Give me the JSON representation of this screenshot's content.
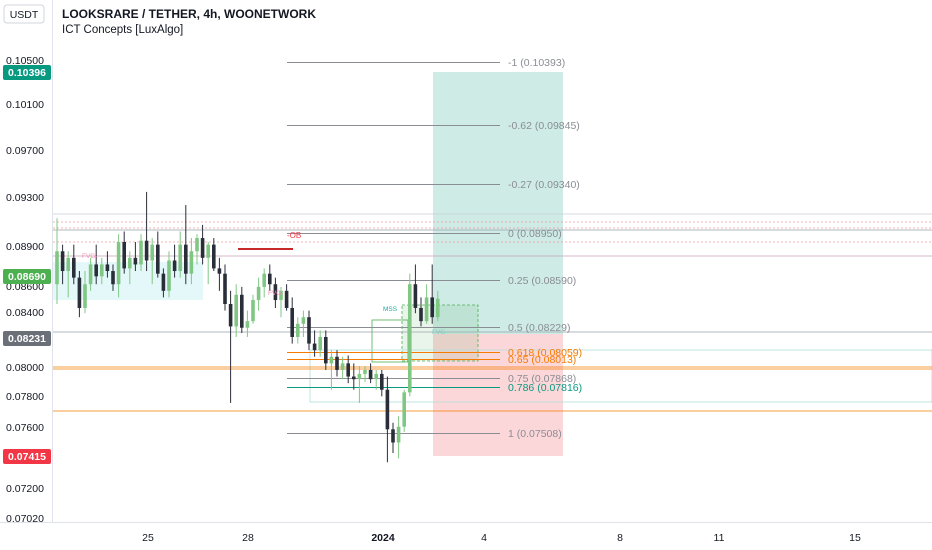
{
  "header": {
    "unit_button": "USDT",
    "symbol_title": "LOOKSRARE / TETHER, 4h, WOONETWORK",
    "indicator": "ICT Concepts [LuxAlgo]"
  },
  "price_axis": {
    "min": 0.0702,
    "max": 0.105,
    "ticks": [
      "0.10500",
      "0.10100",
      "0.09700",
      "0.09300",
      "0.08900",
      "0.08600",
      "0.08400",
      "0.08000",
      "0.07800",
      "0.07600",
      "0.07200",
      "0.07020"
    ]
  },
  "price_tags": [
    {
      "label": "0.10396",
      "value": 0.10396,
      "color": "#089981"
    },
    {
      "label": "0.08690",
      "value": 0.0869,
      "color": "#4caf50"
    },
    {
      "label": "0.08231",
      "value": 0.08231,
      "color": "#6b6f78"
    },
    {
      "label": "0.07415",
      "value": 0.07415,
      "color": "#f23645"
    }
  ],
  "time_axis": {
    "labels": [
      {
        "label": "25",
        "bold": false
      },
      {
        "label": "28",
        "bold": false
      },
      {
        "label": "2024",
        "bold": true
      },
      {
        "label": "4",
        "bold": false
      },
      {
        "label": "8",
        "bold": false
      },
      {
        "label": "11",
        "bold": false
      },
      {
        "label": "15",
        "bold": false
      }
    ]
  },
  "fib_levels": [
    {
      "label": "-1 (0.10393)",
      "value": 0.10393,
      "color": "#8a8d94"
    },
    {
      "label": "-0.62 (0.09845)",
      "value": 0.09845,
      "color": "#8a8d94"
    },
    {
      "label": "-0.27 (0.09340)",
      "value": 0.0934,
      "color": "#8a8d94"
    },
    {
      "label": "0 (0.08950)",
      "value": 0.0895,
      "color": "#8a8d94"
    },
    {
      "label": "0.25 (0.08590)",
      "value": 0.0859,
      "color": "#8a8d94"
    },
    {
      "label": "0.5 (0.08229)",
      "value": 0.08229,
      "color": "#8a8d94"
    },
    {
      "label": "0.618 (0.08059)",
      "value": 0.08059,
      "color": "#f57c00"
    },
    {
      "label": "0.65 (0.08013)",
      "value": 0.08013,
      "color": "#f57c00"
    },
    {
      "label": "0.75 (0.07868)",
      "value": 0.07868,
      "color": "#8a8d94"
    },
    {
      "label": "0.786 (0.07816)",
      "value": 0.07816,
      "color": "#089981"
    },
    {
      "label": "1 (0.07508)",
      "value": 0.07508,
      "color": "#8a8d94"
    }
  ],
  "annotations": {
    "ob_label": "-OB",
    "fvg_labels": [
      "FVG-",
      "FVG-",
      "FVG-"
    ],
    "mss_label": "MSS"
  },
  "chart_data": {
    "type": "candlestick",
    "symbol": "LOOKSRARE / TETHER",
    "timeframe": "4h",
    "exchange": "WOONETWORK",
    "y_range": [
      0.0702,
      0.105
    ],
    "candles": [
      {
        "o": 0.088,
        "h": 0.093,
        "l": 0.0865,
        "c": 0.0905
      },
      {
        "o": 0.0905,
        "h": 0.091,
        "l": 0.088,
        "c": 0.089
      },
      {
        "o": 0.089,
        "h": 0.0905,
        "l": 0.087,
        "c": 0.09
      },
      {
        "o": 0.09,
        "h": 0.091,
        "l": 0.088,
        "c": 0.0885
      },
      {
        "o": 0.0885,
        "h": 0.089,
        "l": 0.0855,
        "c": 0.0862
      },
      {
        "o": 0.0862,
        "h": 0.089,
        "l": 0.0858,
        "c": 0.088
      },
      {
        "o": 0.088,
        "h": 0.09,
        "l": 0.0875,
        "c": 0.0895
      },
      {
        "o": 0.0895,
        "h": 0.091,
        "l": 0.088,
        "c": 0.0886
      },
      {
        "o": 0.0886,
        "h": 0.09,
        "l": 0.088,
        "c": 0.0895
      },
      {
        "o": 0.0895,
        "h": 0.0905,
        "l": 0.0885,
        "c": 0.089
      },
      {
        "o": 0.089,
        "h": 0.0895,
        "l": 0.0875,
        "c": 0.088
      },
      {
        "o": 0.088,
        "h": 0.0918,
        "l": 0.087,
        "c": 0.0912
      },
      {
        "o": 0.0912,
        "h": 0.092,
        "l": 0.0888,
        "c": 0.0892
      },
      {
        "o": 0.0892,
        "h": 0.0905,
        "l": 0.088,
        "c": 0.09
      },
      {
        "o": 0.09,
        "h": 0.0912,
        "l": 0.089,
        "c": 0.0895
      },
      {
        "o": 0.0895,
        "h": 0.0918,
        "l": 0.089,
        "c": 0.0913
      },
      {
        "o": 0.0913,
        "h": 0.095,
        "l": 0.089,
        "c": 0.0898
      },
      {
        "o": 0.0898,
        "h": 0.0915,
        "l": 0.088,
        "c": 0.091
      },
      {
        "o": 0.091,
        "h": 0.092,
        "l": 0.0885,
        "c": 0.0888
      },
      {
        "o": 0.0888,
        "h": 0.0892,
        "l": 0.087,
        "c": 0.0875
      },
      {
        "o": 0.0875,
        "h": 0.0905,
        "l": 0.087,
        "c": 0.0898
      },
      {
        "o": 0.0898,
        "h": 0.091,
        "l": 0.0885,
        "c": 0.089
      },
      {
        "o": 0.089,
        "h": 0.092,
        "l": 0.0885,
        "c": 0.091
      },
      {
        "o": 0.091,
        "h": 0.094,
        "l": 0.088,
        "c": 0.0888
      },
      {
        "o": 0.0888,
        "h": 0.0915,
        "l": 0.088,
        "c": 0.0905
      },
      {
        "o": 0.0905,
        "h": 0.0918,
        "l": 0.0895,
        "c": 0.0915
      },
      {
        "o": 0.0915,
        "h": 0.0925,
        "l": 0.0895,
        "c": 0.09
      },
      {
        "o": 0.09,
        "h": 0.0912,
        "l": 0.088,
        "c": 0.091
      },
      {
        "o": 0.091,
        "h": 0.0915,
        "l": 0.089,
        "c": 0.0892
      },
      {
        "o": 0.0892,
        "h": 0.09,
        "l": 0.0875,
        "c": 0.0888
      },
      {
        "o": 0.0888,
        "h": 0.0895,
        "l": 0.086,
        "c": 0.0865
      },
      {
        "o": 0.0865,
        "h": 0.0875,
        "l": 0.079,
        "c": 0.0848
      },
      {
        "o": 0.0848,
        "h": 0.088,
        "l": 0.084,
        "c": 0.0872
      },
      {
        "o": 0.0872,
        "h": 0.0878,
        "l": 0.0843,
        "c": 0.0847
      },
      {
        "o": 0.0847,
        "h": 0.086,
        "l": 0.084,
        "c": 0.0852
      },
      {
        "o": 0.0852,
        "h": 0.0872,
        "l": 0.085,
        "c": 0.0868
      },
      {
        "o": 0.0868,
        "h": 0.0885,
        "l": 0.086,
        "c": 0.0878
      },
      {
        "o": 0.0878,
        "h": 0.0892,
        "l": 0.087,
        "c": 0.0888
      },
      {
        "o": 0.0888,
        "h": 0.0895,
        "l": 0.0875,
        "c": 0.088
      },
      {
        "o": 0.088,
        "h": 0.0885,
        "l": 0.0862,
        "c": 0.0868
      },
      {
        "o": 0.0868,
        "h": 0.0878,
        "l": 0.0855,
        "c": 0.0875
      },
      {
        "o": 0.0875,
        "h": 0.088,
        "l": 0.086,
        "c": 0.0862
      },
      {
        "o": 0.0862,
        "h": 0.087,
        "l": 0.0835,
        "c": 0.084
      },
      {
        "o": 0.084,
        "h": 0.0855,
        "l": 0.0835,
        "c": 0.085
      },
      {
        "o": 0.085,
        "h": 0.086,
        "l": 0.084,
        "c": 0.0855
      },
      {
        "o": 0.0855,
        "h": 0.086,
        "l": 0.083,
        "c": 0.0835
      },
      {
        "o": 0.0835,
        "h": 0.0845,
        "l": 0.0825,
        "c": 0.083
      },
      {
        "o": 0.083,
        "h": 0.0845,
        "l": 0.0825,
        "c": 0.084
      },
      {
        "o": 0.084,
        "h": 0.0845,
        "l": 0.0815,
        "c": 0.082
      },
      {
        "o": 0.082,
        "h": 0.083,
        "l": 0.08,
        "c": 0.0825
      },
      {
        "o": 0.0825,
        "h": 0.083,
        "l": 0.081,
        "c": 0.0815
      },
      {
        "o": 0.0815,
        "h": 0.0825,
        "l": 0.0808,
        "c": 0.082
      },
      {
        "o": 0.082,
        "h": 0.0826,
        "l": 0.0805,
        "c": 0.081
      },
      {
        "o": 0.081,
        "h": 0.082,
        "l": 0.08,
        "c": 0.0808
      },
      {
        "o": 0.0808,
        "h": 0.0818,
        "l": 0.079,
        "c": 0.0812
      },
      {
        "o": 0.0812,
        "h": 0.0818,
        "l": 0.0806,
        "c": 0.0815
      },
      {
        "o": 0.0815,
        "h": 0.082,
        "l": 0.0805,
        "c": 0.0808
      },
      {
        "o": 0.0808,
        "h": 0.0815,
        "l": 0.08,
        "c": 0.0812
      },
      {
        "o": 0.0812,
        "h": 0.0815,
        "l": 0.0795,
        "c": 0.08
      },
      {
        "o": 0.08,
        "h": 0.081,
        "l": 0.0745,
        "c": 0.077
      },
      {
        "o": 0.077,
        "h": 0.0775,
        "l": 0.0752,
        "c": 0.076
      },
      {
        "o": 0.076,
        "h": 0.078,
        "l": 0.0748,
        "c": 0.0772
      },
      {
        "o": 0.0772,
        "h": 0.08,
        "l": 0.0768,
        "c": 0.0798
      },
      {
        "o": 0.0798,
        "h": 0.0888,
        "l": 0.0795,
        "c": 0.088
      },
      {
        "o": 0.088,
        "h": 0.0895,
        "l": 0.0858,
        "c": 0.0862
      },
      {
        "o": 0.0862,
        "h": 0.087,
        "l": 0.0848,
        "c": 0.0852
      },
      {
        "o": 0.0852,
        "h": 0.088,
        "l": 0.085,
        "c": 0.087
      },
      {
        "o": 0.087,
        "h": 0.0895,
        "l": 0.085,
        "c": 0.0855
      },
      {
        "o": 0.0855,
        "h": 0.0875,
        "l": 0.0852,
        "c": 0.0869
      }
    ]
  }
}
